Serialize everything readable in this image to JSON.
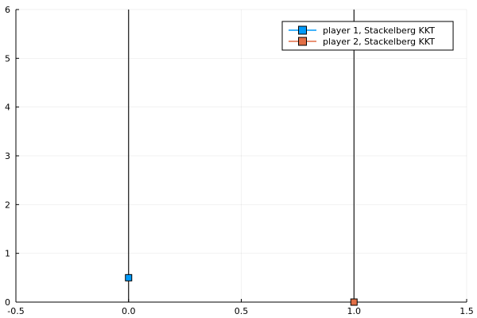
{
  "chart_data": {
    "type": "scatter",
    "title": "",
    "xlabel": "",
    "ylabel": "",
    "xlim": [
      -0.5,
      1.5
    ],
    "ylim": [
      0,
      6
    ],
    "xticks": [
      -0.5,
      0.0,
      0.5,
      1.0,
      1.5
    ],
    "xtick_labels": [
      "-0.5",
      "0.0",
      "0.5",
      "1.0",
      "1.5"
    ],
    "yticks": [
      0,
      1,
      2,
      3,
      4,
      5,
      6
    ],
    "ytick_labels": [
      "0",
      "1",
      "2",
      "3",
      "4",
      "5",
      "6"
    ],
    "grid": true,
    "legend_position": "top-right",
    "series": [
      {
        "name": "player 1, Stackelberg KKT",
        "color": "#009af9",
        "marker": "square",
        "points": [
          {
            "x": 0.0,
            "y": 0.5
          }
        ]
      },
      {
        "name": "player 2, Stackelberg KKT",
        "color": "#e26f46",
        "marker": "square",
        "points": [
          {
            "x": 1.0,
            "y": 0.0
          }
        ]
      }
    ],
    "vertical_lines": [
      0.0,
      1.0
    ]
  }
}
